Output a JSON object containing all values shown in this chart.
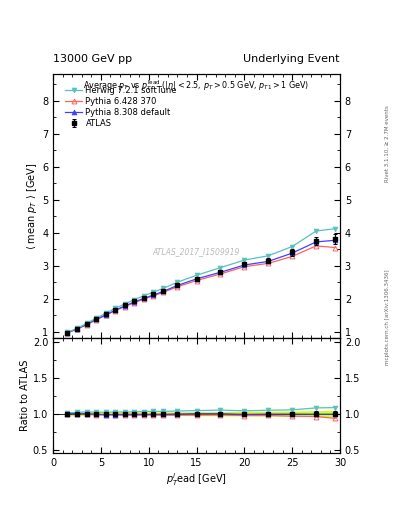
{
  "title_left": "13000 GeV pp",
  "title_right": "Underlying Event",
  "right_label_top": "Rivet 3.1.10, ≥ 2.7M events",
  "right_label_bottom": "mcplots.cern.ch [arXiv:1306.3436]",
  "watermark": "ATLAS_2017_I1509919",
  "ylabel_main": "⟨ mean p$_T$ ⟩ [GeV]",
  "ylabel_ratio": "Ratio to ATLAS",
  "xlabel": "$p_T^l$ead [GeV]",
  "ylim_main": [
    0.8,
    8.8
  ],
  "ylim_ratio": [
    0.45,
    2.05
  ],
  "xlim": [
    0,
    30
  ],
  "yticks_main": [
    1,
    2,
    3,
    4,
    5,
    6,
    7,
    8
  ],
  "yticks_ratio": [
    0.5,
    1.0,
    1.5,
    2.0
  ],
  "xticks": [
    0,
    5,
    10,
    15,
    20,
    25,
    30
  ],
  "atlas_x": [
    1.5,
    2.5,
    3.5,
    4.5,
    5.5,
    6.5,
    7.5,
    8.5,
    9.5,
    10.5,
    11.5,
    13.0,
    15.0,
    17.5,
    20.0,
    22.5,
    25.0,
    27.5,
    29.5
  ],
  "atlas_y": [
    0.97,
    1.08,
    1.22,
    1.38,
    1.53,
    1.67,
    1.8,
    1.92,
    2.03,
    2.13,
    2.24,
    2.41,
    2.6,
    2.8,
    3.05,
    3.15,
    3.4,
    3.75,
    3.8
  ],
  "atlas_yerr": [
    0.02,
    0.02,
    0.02,
    0.02,
    0.02,
    0.02,
    0.03,
    0.03,
    0.03,
    0.03,
    0.04,
    0.04,
    0.05,
    0.06,
    0.07,
    0.08,
    0.1,
    0.12,
    0.15
  ],
  "herwig_x": [
    1.5,
    2.5,
    3.5,
    4.5,
    5.5,
    6.5,
    7.5,
    8.5,
    9.5,
    10.5,
    11.5,
    13.0,
    15.0,
    17.5,
    20.0,
    22.5,
    25.0,
    27.5,
    29.5
  ],
  "herwig_y": [
    0.98,
    1.1,
    1.25,
    1.41,
    1.56,
    1.71,
    1.84,
    1.97,
    2.09,
    2.2,
    2.31,
    2.5,
    2.71,
    2.94,
    3.17,
    3.3,
    3.58,
    4.05,
    4.12
  ],
  "pythia6_x": [
    1.5,
    2.5,
    3.5,
    4.5,
    5.5,
    6.5,
    7.5,
    8.5,
    9.5,
    10.5,
    11.5,
    13.0,
    15.0,
    17.5,
    20.0,
    22.5,
    25.0,
    27.5,
    29.5
  ],
  "pythia6_y": [
    0.97,
    1.08,
    1.21,
    1.36,
    1.5,
    1.64,
    1.76,
    1.88,
    1.99,
    2.09,
    2.19,
    2.36,
    2.55,
    2.75,
    2.97,
    3.07,
    3.28,
    3.6,
    3.55
  ],
  "pythia8_x": [
    1.5,
    2.5,
    3.5,
    4.5,
    5.5,
    6.5,
    7.5,
    8.5,
    9.5,
    10.5,
    11.5,
    13.0,
    15.0,
    17.5,
    20.0,
    22.5,
    25.0,
    27.5,
    29.5
  ],
  "pythia8_y": [
    0.97,
    1.08,
    1.22,
    1.37,
    1.51,
    1.65,
    1.78,
    1.9,
    2.01,
    2.11,
    2.22,
    2.4,
    2.6,
    2.8,
    3.02,
    3.13,
    3.38,
    3.72,
    3.77
  ],
  "atlas_color": "black",
  "herwig_color": "#5BBFBF",
  "pythia6_color": "#FF6060",
  "pythia8_color": "#4040FF",
  "band_color": "#CCFF00",
  "legend_labels": [
    "ATLAS",
    "Herwig 7.2.1 softTune",
    "Pythia 6.428 370",
    "Pythia 8.308 default"
  ],
  "bg_color": "#ffffff"
}
